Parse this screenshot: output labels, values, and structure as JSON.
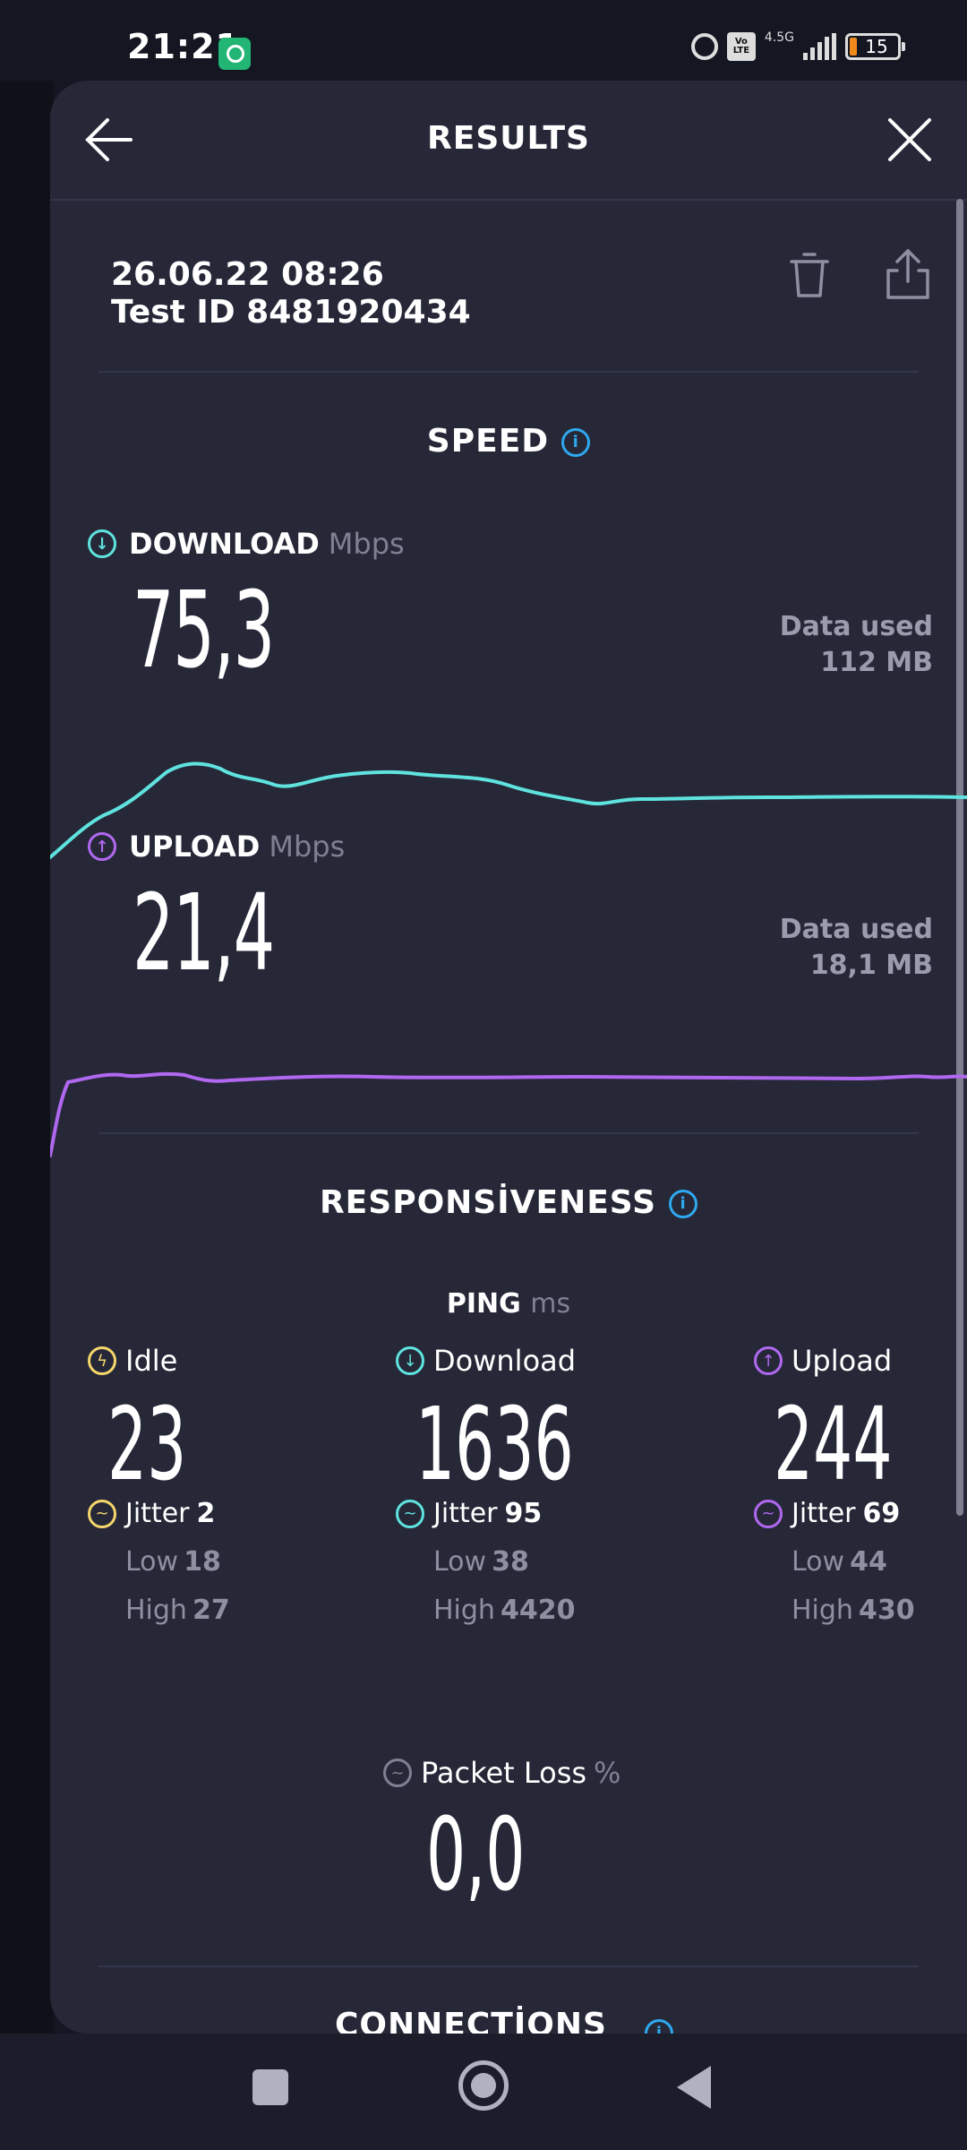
{
  "status_bar": {
    "time": "21:21",
    "network_type": "4.5G",
    "volte_label": "Vo LTE",
    "battery_level": "15"
  },
  "header": {
    "title": "RESULTS"
  },
  "test": {
    "datetime": "26.06.22 08:26",
    "test_id": "Test ID 8481920434"
  },
  "speed": {
    "title": "SPEED",
    "info_glyph": "i",
    "download": {
      "label": "DOWNLOAD",
      "unit": "Mbps",
      "value": "75,3",
      "data_used_label": "Data used",
      "data_used_value": "112 MB",
      "color": "#5fe3df"
    },
    "upload": {
      "label": "UPLOAD",
      "unit": "Mbps",
      "value": "21,4",
      "data_used_label": "Data used",
      "data_used_value": "18,1 MB",
      "color": "#b068f0"
    }
  },
  "responsiveness": {
    "title": "RESPONSİVENESS",
    "info_glyph": "i",
    "ping_label": "PING",
    "ping_unit": "ms",
    "columns": [
      {
        "label": "Idle",
        "value": "23",
        "jitter_label": "Jitter",
        "jitter": "2",
        "low_label": "Low",
        "low": "18",
        "high_label": "High",
        "high": "27",
        "color": "#f5d66b"
      },
      {
        "label": "Download",
        "value": "1636",
        "jitter_label": "Jitter",
        "jitter": "95",
        "low_label": "Low",
        "low": "38",
        "high_label": "High",
        "high": "4420",
        "color": "#5fe3df"
      },
      {
        "label": "Upload",
        "value": "244",
        "jitter_label": "Jitter",
        "jitter": "69",
        "low_label": "Low",
        "low": "44",
        "high_label": "High",
        "high": "430",
        "color": "#b068f0"
      }
    ],
    "packet_loss_label": "Packet Loss",
    "packet_loss_unit": "%",
    "packet_loss_value": "0,0"
  },
  "connections": {
    "title": "CONNECTİONS"
  },
  "icons": {
    "back": "arrow-left-icon",
    "close": "close-icon",
    "trash": "trash-icon",
    "share": "share-icon"
  }
}
